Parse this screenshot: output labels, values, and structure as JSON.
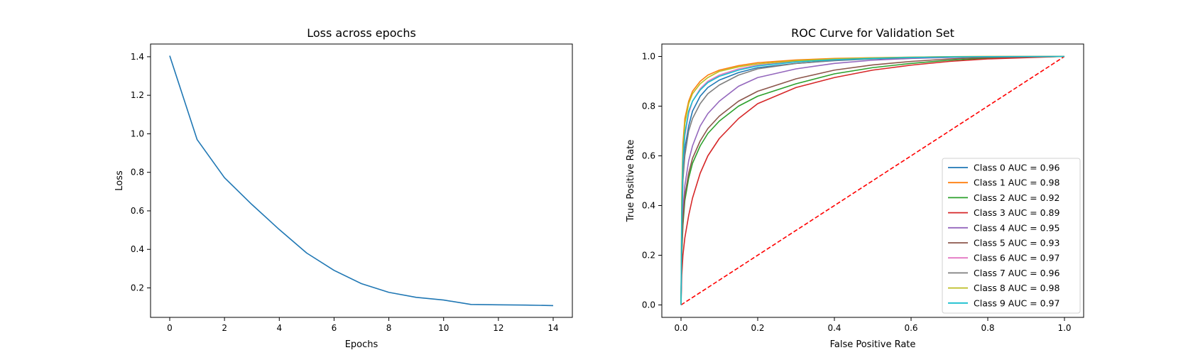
{
  "chart_data": [
    {
      "type": "line",
      "title": "Loss across epochs",
      "xlabel": "Epochs",
      "ylabel": "Loss",
      "xlim": [
        -0.7,
        14.7
      ],
      "ylim": [
        0.047,
        1.466
      ],
      "xticks": [
        0,
        2,
        4,
        6,
        8,
        10,
        12,
        14
      ],
      "yticks": [
        0.2,
        0.4,
        0.6,
        0.8,
        1.0,
        1.2,
        1.4
      ],
      "grid": false,
      "series": [
        {
          "color": "#1f77b4",
          "x": [
            0,
            1,
            2,
            3,
            4,
            5,
            6,
            7,
            8,
            9,
            10,
            11,
            12,
            13,
            14
          ],
          "y": [
            1.405,
            0.97,
            0.772,
            0.633,
            0.503,
            0.381,
            0.291,
            0.222,
            0.177,
            0.151,
            0.137,
            0.114,
            0.112,
            0.111,
            0.108
          ]
        }
      ]
    },
    {
      "type": "line",
      "title": "ROC Curve for Validation Set",
      "xlabel": "False Positive Rate",
      "ylabel": "True Positive Rate",
      "xlim": [
        -0.05,
        1.05
      ],
      "ylim": [
        -0.05,
        1.05
      ],
      "xticks": [
        0.0,
        0.2,
        0.4,
        0.6,
        0.8,
        1.0
      ],
      "yticks": [
        0.0,
        0.2,
        0.4,
        0.6,
        0.8,
        1.0
      ],
      "grid": false,
      "legend_position": "bottom-right",
      "series": [
        {
          "name": "Class 0 AUC = 0.96",
          "color": "#1f77b4",
          "x": [
            0,
            0.002,
            0.005,
            0.01,
            0.02,
            0.03,
            0.05,
            0.07,
            0.1,
            0.15,
            0.2,
            0.3,
            0.4,
            0.5,
            0.6,
            0.7,
            0.8,
            1.0
          ],
          "y": [
            0,
            0.3,
            0.52,
            0.63,
            0.72,
            0.78,
            0.84,
            0.875,
            0.905,
            0.935,
            0.955,
            0.972,
            0.983,
            0.99,
            0.994,
            0.997,
            0.999,
            1.0
          ]
        },
        {
          "name": "Class 1 AUC = 0.98",
          "color": "#ff7f0e",
          "x": [
            0,
            0.002,
            0.005,
            0.01,
            0.02,
            0.03,
            0.05,
            0.07,
            0.1,
            0.15,
            0.2,
            0.3,
            0.4,
            0.5,
            0.6,
            0.7,
            0.8,
            1.0
          ],
          "y": [
            0,
            0.45,
            0.65,
            0.75,
            0.82,
            0.86,
            0.9,
            0.925,
            0.945,
            0.963,
            0.975,
            0.986,
            0.992,
            0.995,
            0.997,
            0.999,
            1.0,
            1.0
          ]
        },
        {
          "name": "Class 2 AUC = 0.92",
          "color": "#2ca02c",
          "x": [
            0,
            0.002,
            0.005,
            0.01,
            0.02,
            0.03,
            0.05,
            0.07,
            0.1,
            0.15,
            0.2,
            0.3,
            0.4,
            0.5,
            0.6,
            0.7,
            0.8,
            1.0
          ],
          "y": [
            0,
            0.2,
            0.32,
            0.42,
            0.51,
            0.57,
            0.64,
            0.69,
            0.74,
            0.8,
            0.84,
            0.89,
            0.93,
            0.955,
            0.972,
            0.985,
            0.993,
            1.0
          ]
        },
        {
          "name": "Class 3 AUC = 0.89",
          "color": "#d62728",
          "x": [
            0,
            0.002,
            0.005,
            0.01,
            0.02,
            0.03,
            0.05,
            0.07,
            0.1,
            0.15,
            0.2,
            0.3,
            0.4,
            0.5,
            0.6,
            0.7,
            0.8,
            1.0
          ],
          "y": [
            0,
            0.12,
            0.2,
            0.27,
            0.36,
            0.43,
            0.53,
            0.6,
            0.67,
            0.75,
            0.81,
            0.875,
            0.915,
            0.945,
            0.965,
            0.98,
            0.99,
            1.0
          ]
        },
        {
          "name": "Class 4 AUC = 0.95",
          "color": "#9467bd",
          "x": [
            0,
            0.002,
            0.005,
            0.01,
            0.02,
            0.03,
            0.05,
            0.07,
            0.1,
            0.15,
            0.2,
            0.3,
            0.4,
            0.5,
            0.6,
            0.7,
            0.8,
            1.0
          ],
          "y": [
            0,
            0.25,
            0.38,
            0.48,
            0.58,
            0.64,
            0.72,
            0.77,
            0.82,
            0.88,
            0.915,
            0.95,
            0.972,
            0.985,
            0.992,
            0.996,
            0.999,
            1.0
          ]
        },
        {
          "name": "Class 5 AUC = 0.93",
          "color": "#8c564b",
          "x": [
            0,
            0.002,
            0.005,
            0.01,
            0.02,
            0.03,
            0.05,
            0.07,
            0.1,
            0.15,
            0.2,
            0.3,
            0.4,
            0.5,
            0.6,
            0.7,
            0.8,
            1.0
          ],
          "y": [
            0,
            0.22,
            0.34,
            0.44,
            0.53,
            0.59,
            0.66,
            0.71,
            0.76,
            0.82,
            0.86,
            0.91,
            0.945,
            0.966,
            0.98,
            0.99,
            0.996,
            1.0
          ]
        },
        {
          "name": "Class 6 AUC = 0.97",
          "color": "#e377c2",
          "x": [
            0,
            0.002,
            0.005,
            0.01,
            0.02,
            0.03,
            0.05,
            0.07,
            0.1,
            0.15,
            0.2,
            0.3,
            0.4,
            0.5,
            0.6,
            0.7,
            0.8,
            1.0
          ],
          "y": [
            0,
            0.35,
            0.57,
            0.68,
            0.77,
            0.82,
            0.87,
            0.9,
            0.925,
            0.95,
            0.965,
            0.98,
            0.988,
            0.993,
            0.996,
            0.998,
            0.999,
            1.0
          ]
        },
        {
          "name": "Class 7 AUC = 0.96",
          "color": "#7f7f7f",
          "x": [
            0,
            0.002,
            0.005,
            0.01,
            0.02,
            0.03,
            0.05,
            0.07,
            0.1,
            0.15,
            0.2,
            0.3,
            0.4,
            0.5,
            0.6,
            0.7,
            0.8,
            1.0
          ],
          "y": [
            0,
            0.32,
            0.5,
            0.6,
            0.7,
            0.75,
            0.81,
            0.85,
            0.885,
            0.925,
            0.95,
            0.972,
            0.984,
            0.991,
            0.995,
            0.998,
            0.999,
            1.0
          ]
        },
        {
          "name": "Class 8 AUC = 0.98",
          "color": "#bcbd22",
          "x": [
            0,
            0.002,
            0.005,
            0.01,
            0.02,
            0.03,
            0.05,
            0.07,
            0.1,
            0.15,
            0.2,
            0.3,
            0.4,
            0.5,
            0.6,
            0.7,
            0.8,
            1.0
          ],
          "y": [
            0,
            0.42,
            0.62,
            0.73,
            0.81,
            0.85,
            0.89,
            0.915,
            0.94,
            0.958,
            0.97,
            0.983,
            0.99,
            0.994,
            0.997,
            0.999,
            1.0,
            1.0
          ]
        },
        {
          "name": "Class 9 AUC = 0.97",
          "color": "#17becf",
          "x": [
            0,
            0.002,
            0.005,
            0.01,
            0.02,
            0.03,
            0.05,
            0.07,
            0.1,
            0.15,
            0.2,
            0.3,
            0.4,
            0.5,
            0.6,
            0.7,
            0.8,
            1.0
          ],
          "y": [
            0,
            0.36,
            0.58,
            0.69,
            0.78,
            0.82,
            0.865,
            0.895,
            0.92,
            0.945,
            0.962,
            0.978,
            0.987,
            0.992,
            0.996,
            0.998,
            0.999,
            1.0
          ]
        }
      ],
      "reference_line": {
        "color": "#ff0000",
        "style": "dashed",
        "x": [
          0,
          1
        ],
        "y": [
          0,
          1
        ]
      }
    }
  ]
}
